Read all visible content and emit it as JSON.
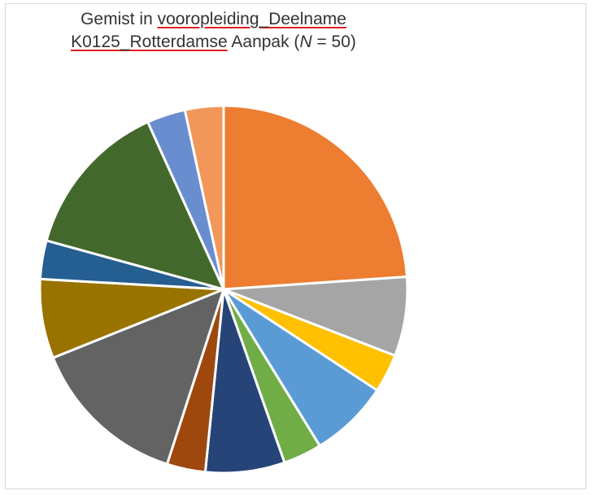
{
  "chart_data": {
    "type": "pie",
    "title_line1_parts": [
      "Gemist in ",
      "vooropleiding_Deelname"
    ],
    "title_line2_parts": [
      "K0125_Rotterdamse",
      " Aanpak (",
      "N",
      " = 50)"
    ],
    "slices": [
      {
        "value": 12,
        "color": "#ED7D31"
      },
      {
        "value": 3.5,
        "color": "#A5A5A5"
      },
      {
        "value": 1.7,
        "color": "#FFC000"
      },
      {
        "value": 3.5,
        "color": "#5B9BD5"
      },
      {
        "value": 1.7,
        "color": "#70AD47"
      },
      {
        "value": 3.5,
        "color": "#264478"
      },
      {
        "value": 1.7,
        "color": "#9E480E"
      },
      {
        "value": 7,
        "color": "#636363"
      },
      {
        "value": 3.5,
        "color": "#997300"
      },
      {
        "value": 1.7,
        "color": "#255E91"
      },
      {
        "value": 7,
        "color": "#43682B"
      },
      {
        "value": 1.7,
        "color": "#698ED0"
      },
      {
        "value": 1.7,
        "color": "#F1975A"
      }
    ]
  }
}
